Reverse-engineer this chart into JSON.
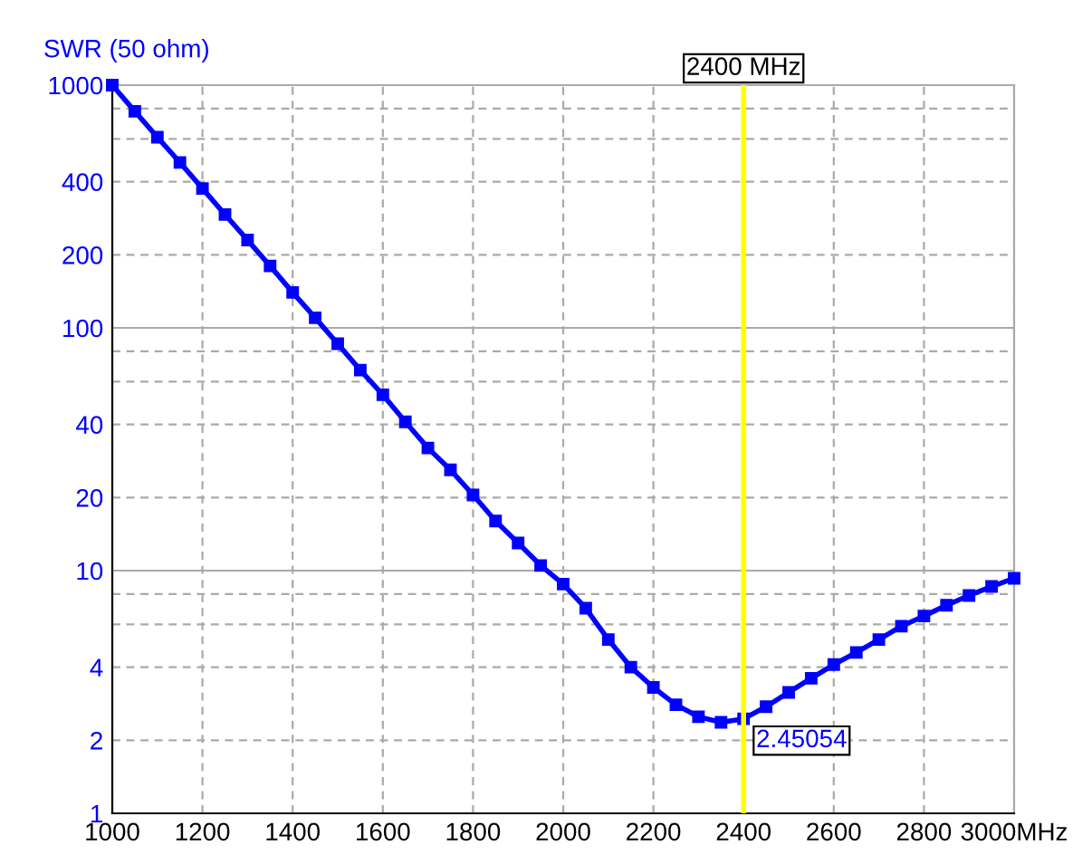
{
  "chart_data": {
    "type": "line",
    "ylabel": "SWR (50 ohm)",
    "x": [
      1000,
      1050,
      1100,
      1150,
      1200,
      1250,
      1300,
      1350,
      1400,
      1450,
      1500,
      1550,
      1600,
      1650,
      1700,
      1750,
      1800,
      1850,
      1900,
      1950,
      2000,
      2050,
      2100,
      2150,
      2200,
      2250,
      2300,
      2350,
      2400,
      2450,
      2500,
      2550,
      2600,
      2650,
      2700,
      2750,
      2800,
      2850,
      2900,
      2950,
      3000
    ],
    "series": [
      {
        "color": "#0000ff",
        "values": [
          1000,
          780,
          610,
          480,
          375,
          293,
          230,
          180,
          140,
          110,
          86,
          67,
          53,
          41,
          32,
          26,
          20.5,
          16,
          13,
          10.5,
          8.8,
          7.0,
          5.2,
          4.0,
          3.3,
          2.8,
          2.5,
          2.37,
          2.45054,
          2.75,
          3.15,
          3.6,
          4.1,
          4.6,
          5.2,
          5.9,
          6.5,
          7.2,
          7.9,
          8.6,
          9.3
        ]
      }
    ],
    "log": "y",
    "xlim": [
      1000,
      3000
    ],
    "ylim": [
      1,
      1000
    ],
    "xticks": [
      1000,
      1200,
      1400,
      1600,
      1800,
      2000,
      2200,
      2400,
      2600,
      2800,
      {
        "value": 3000,
        "label": "3000MHz"
      }
    ],
    "yticks": [
      1,
      2,
      4,
      {
        "value": 6,
        "label": null
      },
      {
        "value": 8,
        "label": null
      },
      10,
      20,
      40,
      {
        "value": 60,
        "label": null
      },
      {
        "value": 80,
        "label": null
      },
      100,
      200,
      400,
      {
        "value": 600,
        "label": null
      },
      {
        "value": 800,
        "label": null
      },
      1000
    ],
    "grid": true,
    "marker": "square",
    "line_style": "solid",
    "ref_lines": [
      {
        "axis": "x",
        "value": 2400,
        "label": "2400 MHz",
        "color": "#ffff00"
      }
    ],
    "annotations": [
      {
        "text": "2.45054",
        "x": 2400,
        "y": 2.45054
      }
    ]
  }
}
